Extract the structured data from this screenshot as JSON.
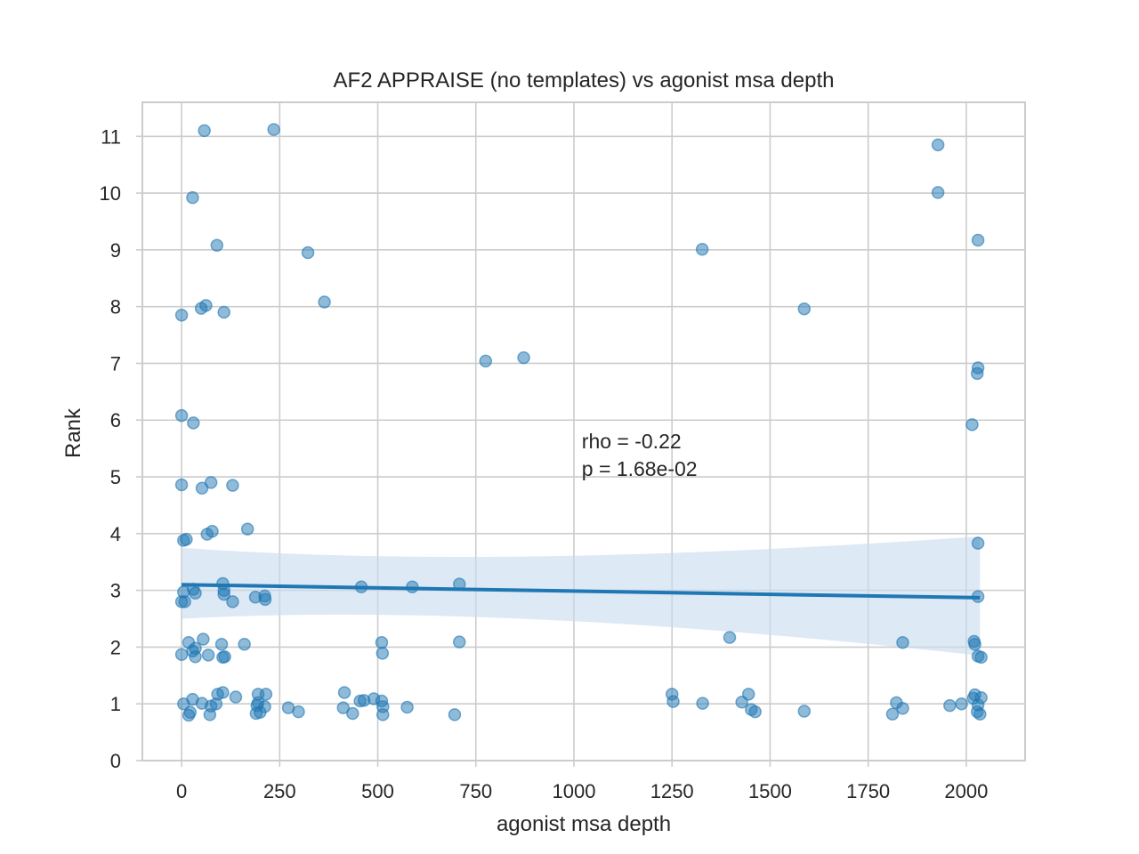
{
  "chart_data": {
    "type": "scatter",
    "title": "AF2 APPRAISE (no templates) vs agonist msa depth",
    "xlabel": "agonist msa depth",
    "ylabel": "Rank",
    "xlim": [
      -100,
      2150
    ],
    "ylim": [
      0,
      11.6
    ],
    "xticks": [
      0,
      250,
      500,
      750,
      1000,
      1250,
      1500,
      1750,
      2000
    ],
    "yticks": [
      0,
      1,
      2,
      3,
      4,
      5,
      6,
      7,
      8,
      9,
      10,
      11
    ],
    "grid": true,
    "color": "#1f77b4",
    "point_alpha": 0.5,
    "band_color": "#c6dbef",
    "annotation": {
      "rho_text": "rho = -0.22",
      "p_text": "p = 1.68e-02",
      "x": 1020,
      "y": 5.5
    },
    "regression": {
      "x_start": 0,
      "y_start": 3.1,
      "x_end": 2035,
      "y_end": 2.87,
      "ci_upper_start": 3.75,
      "ci_upper_mid": 3.35,
      "ci_upper_end": 3.95,
      "ci_lower_start": 2.5,
      "ci_lower_mid": 2.8,
      "ci_lower_end": 1.85,
      "ci_mid_x": 800
    },
    "points": [
      [
        58,
        11.1
      ],
      [
        235,
        11.12
      ],
      [
        1928,
        10.85
      ],
      [
        28,
        9.92
      ],
      [
        1928,
        10.01
      ],
      [
        90,
        9.08
      ],
      [
        322,
        8.95
      ],
      [
        1327,
        9.01
      ],
      [
        2030,
        9.17
      ],
      [
        0,
        7.85
      ],
      [
        50,
        7.97
      ],
      [
        62,
        8.02
      ],
      [
        108,
        7.9
      ],
      [
        364,
        8.08
      ],
      [
        1587,
        7.96
      ],
      [
        775,
        7.04
      ],
      [
        872,
        7.1
      ],
      [
        2030,
        6.92
      ],
      [
        2028,
        6.82
      ],
      [
        0,
        6.08
      ],
      [
        30,
        5.95
      ],
      [
        2015,
        5.92
      ],
      [
        0,
        4.86
      ],
      [
        52,
        4.8
      ],
      [
        75,
        4.9
      ],
      [
        130,
        4.85
      ],
      [
        5,
        3.88
      ],
      [
        12,
        3.9
      ],
      [
        65,
        3.99
      ],
      [
        78,
        4.04
      ],
      [
        168,
        4.08
      ],
      [
        2030,
        3.83
      ],
      [
        0,
        2.8
      ],
      [
        8,
        2.8
      ],
      [
        5,
        2.97
      ],
      [
        30,
        3.02
      ],
      [
        35,
        2.95
      ],
      [
        105,
        3.12
      ],
      [
        108,
        3.0
      ],
      [
        108,
        2.93
      ],
      [
        130,
        2.8
      ],
      [
        188,
        2.88
      ],
      [
        212,
        2.9
      ],
      [
        213,
        2.84
      ],
      [
        458,
        3.06
      ],
      [
        588,
        3.06
      ],
      [
        708,
        3.11
      ],
      [
        2030,
        2.89
      ],
      [
        0,
        1.87
      ],
      [
        18,
        2.08
      ],
      [
        28,
        1.93
      ],
      [
        35,
        1.98
      ],
      [
        35,
        1.83
      ],
      [
        55,
        2.14
      ],
      [
        68,
        1.86
      ],
      [
        102,
        2.05
      ],
      [
        105,
        1.82
      ],
      [
        110,
        1.83
      ],
      [
        160,
        2.05
      ],
      [
        510,
        2.08
      ],
      [
        512,
        1.89
      ],
      [
        708,
        2.09
      ],
      [
        1397,
        2.17
      ],
      [
        1838,
        2.08
      ],
      [
        2020,
        2.1
      ],
      [
        2022,
        2.05
      ],
      [
        2030,
        1.84
      ],
      [
        2038,
        1.82
      ],
      [
        5,
        1.0
      ],
      [
        18,
        0.8
      ],
      [
        22,
        0.85
      ],
      [
        28,
        1.08
      ],
      [
        52,
        1.01
      ],
      [
        72,
        0.81
      ],
      [
        75,
        0.96
      ],
      [
        88,
        1.0
      ],
      [
        92,
        1.17
      ],
      [
        105,
        1.2
      ],
      [
        138,
        1.12
      ],
      [
        190,
        0.83
      ],
      [
        192,
        0.97
      ],
      [
        195,
        1.02
      ],
      [
        195,
        1.17
      ],
      [
        200,
        0.85
      ],
      [
        212,
        0.95
      ],
      [
        215,
        1.17
      ],
      [
        272,
        0.93
      ],
      [
        298,
        0.86
      ],
      [
        412,
        0.93
      ],
      [
        415,
        1.2
      ],
      [
        436,
        0.83
      ],
      [
        455,
        1.05
      ],
      [
        465,
        1.06
      ],
      [
        490,
        1.09
      ],
      [
        510,
        1.05
      ],
      [
        513,
        0.95
      ],
      [
        513,
        0.81
      ],
      [
        575,
        0.94
      ],
      [
        696,
        0.81
      ],
      [
        1250,
        1.17
      ],
      [
        1253,
        1.04
      ],
      [
        1328,
        1.01
      ],
      [
        1428,
        1.03
      ],
      [
        1445,
        1.17
      ],
      [
        1452,
        0.9
      ],
      [
        1462,
        0.86
      ],
      [
        1587,
        0.87
      ],
      [
        1812,
        0.82
      ],
      [
        1822,
        1.02
      ],
      [
        1838,
        0.92
      ],
      [
        1958,
        0.97
      ],
      [
        1988,
        1.0
      ],
      [
        2018,
        1.1
      ],
      [
        2022,
        1.16
      ],
      [
        2028,
        0.86
      ],
      [
        2030,
        0.98
      ],
      [
        2035,
        0.82
      ],
      [
        2038,
        1.11
      ]
    ]
  }
}
